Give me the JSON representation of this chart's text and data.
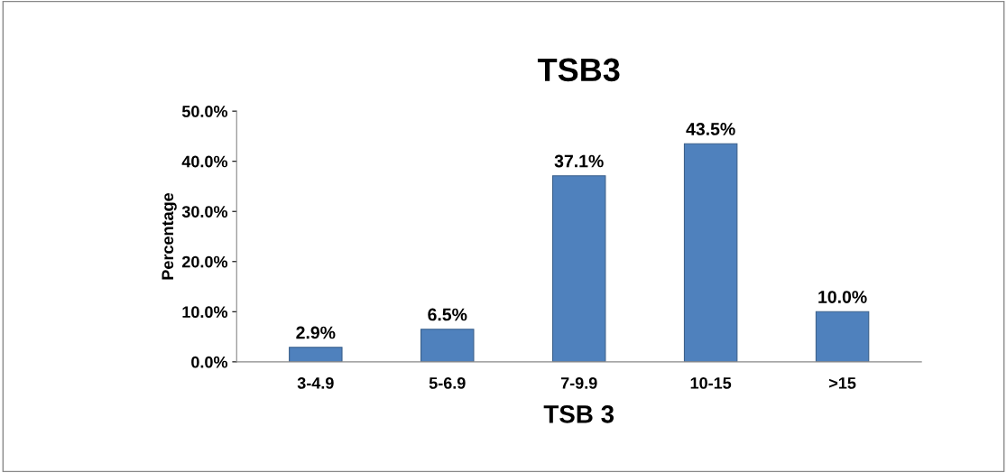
{
  "chart_data": {
    "type": "bar",
    "title": "TSB3",
    "xlabel": "TSB 3",
    "ylabel": "Percentage",
    "categories": [
      "3-4.9",
      "5-6.9",
      "7-9.9",
      "10-15",
      ">15"
    ],
    "values": [
      2.9,
      6.5,
      37.1,
      43.5,
      10.0
    ],
    "value_labels": [
      "2.9%",
      "6.5%",
      "37.1%",
      "43.5%",
      "10.0%"
    ],
    "color": "#4f81bd",
    "ylim": [
      0,
      50
    ],
    "yticks": [
      {
        "value": 0,
        "label": "0.0%"
      },
      {
        "value": 10,
        "label": "10.0%"
      },
      {
        "value": 20,
        "label": "20.0%"
      },
      {
        "value": 30,
        "label": "30.0%"
      },
      {
        "value": 40,
        "label": "40.0%"
      },
      {
        "value": 50,
        "label": "50.0%"
      }
    ],
    "grid": false,
    "legend": false
  }
}
